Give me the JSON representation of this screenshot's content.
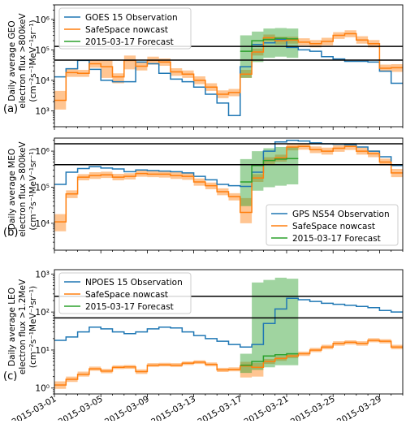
{
  "x_ticks": [
    "2015-03-01",
    "2015-03-05",
    "2015-03-09",
    "2015-03-13",
    "2015-03-17",
    "2015-03-21",
    "2015-03-25",
    "2015-03-29"
  ],
  "chart_data": [
    {
      "type": "line",
      "panel_label": "(a)",
      "ylabel_line1": "Daily average GEO",
      "ylabel_line2": "electron flux >800keV",
      "ylabel_units": "(cm⁻²s⁻¹MeV⁻¹sr⁻¹)",
      "yscale": "log",
      "ylim": [
        300.0,
        3000000.0
      ],
      "y_ticks": [
        {
          "v": 1000.0,
          "label": "10³"
        },
        {
          "v": 10000.0,
          "label": "10⁴"
        },
        {
          "v": 100000.0,
          "label": "10⁵"
        },
        {
          "v": 1000000.0,
          "label": "10⁶"
        }
      ],
      "xlim": [
        0,
        30
      ],
      "legend_position": "top-left",
      "thresholds": [
        130000.0,
        46000.0
      ],
      "series": [
        {
          "name": "GOES 15 Observation",
          "color": "#1f77b4",
          "values": [
            13000.0,
            24000.0,
            45000.0,
            23000.0,
            10000.0,
            9000.0,
            9000.0,
            40000.0,
            35000.0,
            17000.0,
            11000.0,
            9000.0,
            6000.0,
            3500.0,
            1800.0,
            700.0,
            28000.0,
            150000.0,
            170000.0,
            220000.0,
            120000.0,
            100000.0,
            90000.0,
            60000.0,
            50000.0,
            42000.0,
            42000.0,
            40000.0,
            20000.0,
            8000.0
          ]
        },
        {
          "name": "SafeSpace nowcast",
          "color": "#ff7f0e",
          "values": [
            2200.0,
            18000.0,
            17000.0,
            35000.0,
            28000.0,
            13000.0,
            45000.0,
            29000.0,
            45000.0,
            40000.0,
            19000.0,
            16000.0,
            10000.0,
            6000.0,
            3500.0,
            4000.0,
            16000.0,
            85000.0,
            250000.0,
            200000.0,
            210000.0,
            180000.0,
            160000.0,
            190000.0,
            300000.0,
            340000.0,
            210000.0,
            160000.0,
            25000.0,
            26000.0
          ],
          "lower": [
            1100.0,
            13000.0,
            13000.0,
            26000.0,
            12000.0,
            8000.0,
            23000.0,
            21000.0,
            33000.0,
            30000.0,
            14000.0,
            12000.0,
            7500.0,
            4500.0,
            2600.0,
            3000.0,
            12000.0,
            65000.0,
            190000.0,
            150000.0,
            160000.0,
            140000.0,
            120000.0,
            140000.0,
            230000.0,
            260000.0,
            160000.0,
            120000.0,
            19000.0,
            19000.0
          ],
          "upper": [
            4500.0,
            24000.0,
            22000.0,
            45000.0,
            45000.0,
            17000.0,
            65000.0,
            39000.0,
            60000.0,
            52000.0,
            25000.0,
            21000.0,
            13500.0,
            8000.0,
            4700.0,
            5200.0,
            22000.0,
            110000.0,
            320000.0,
            270000.0,
            270000.0,
            240000.0,
            210000.0,
            250000.0,
            380000.0,
            440000.0,
            280000.0,
            210000.0,
            33000.0,
            34000.0
          ]
        },
        {
          "name": "2015-03-17 Forecast",
          "color": "#2ca02c",
          "start": 16,
          "values": [
            90000.0,
            200000.0,
            220000.0,
            240000.0,
            230000.0
          ],
          "lower": [
            12000.0,
            40000.0,
            55000.0,
            60000.0,
            55000.0
          ],
          "upper": [
            300000.0,
            400000.0,
            500000.0,
            520000.0,
            500000.0
          ]
        }
      ]
    },
    {
      "type": "line",
      "panel_label": "(b)",
      "ylabel_line1": "Daily average MEO",
      "ylabel_line2": "electron flux >800keV",
      "ylabel_units": "(cm⁻²s⁻¹MeV⁻¹sr⁻¹)",
      "yscale": "log",
      "ylim": [
        1800.0,
        2300000.0
      ],
      "y_ticks": [
        {
          "v": 10000.0,
          "label": "10⁴"
        },
        {
          "v": 100000.0,
          "label": "10⁵"
        },
        {
          "v": 1000000.0,
          "label": "10⁶"
        }
      ],
      "xlim": [
        0,
        30
      ],
      "legend_position": "bottom-right",
      "thresholds": [
        1600000.0,
        420000.0
      ],
      "series": [
        {
          "name": "GPS NS54 Observation",
          "color": "#1f77b4",
          "values": [
            120000.0,
            260000.0,
            330000.0,
            370000.0,
            340000.0,
            320000.0,
            270000.0,
            300000.0,
            290000.0,
            280000.0,
            270000.0,
            250000.0,
            200000.0,
            160000.0,
            120000.0,
            110000.0,
            105000.0,
            260000.0,
            1000000.0,
            1800000.0,
            2000000.0,
            1900000.0,
            1700000.0,
            1600000.0,
            1550000.0,
            1500000.0,
            1300000.0,
            1000000.0,
            700000.0,
            400000.0
          ]
        },
        {
          "name": "SafeSpace nowcast",
          "color": "#ff7f0e",
          "values": [
            11000.0,
            65000.0,
            190000.0,
            210000.0,
            220000.0,
            190000.0,
            200000.0,
            240000.0,
            230000.0,
            230000.0,
            210000.0,
            200000.0,
            140000.0,
            110000.0,
            75000.0,
            55000.0,
            20000.0,
            180000.0,
            550000.0,
            650000.0,
            1300000.0,
            1350000.0,
            1100000.0,
            1000000.0,
            1200000.0,
            1350000.0,
            1000000.0,
            850000.0,
            500000.0,
            250000.0
          ],
          "lower": [
            6000.0,
            50000.0,
            155000.0,
            170000.0,
            180000.0,
            155000.0,
            165000.0,
            195000.0,
            190000.0,
            185000.0,
            170000.0,
            160000.0,
            110000.0,
            88000.0,
            60000.0,
            43000.0,
            10000.0,
            140000.0,
            430000.0,
            510000.0,
            1050000.0,
            1100000.0,
            880000.0,
            800000.0,
            960000.0,
            1080000.0,
            800000.0,
            680000.0,
            400000.0,
            190000.0
          ],
          "upper": [
            18000.0,
            82000.0,
            230000.0,
            260000.0,
            270000.0,
            235000.0,
            245000.0,
            295000.0,
            280000.0,
            280000.0,
            260000.0,
            245000.0,
            175000.0,
            135000.0,
            93000.0,
            68000.0,
            50000.0,
            230000.0,
            680000.0,
            800000.0,
            1550000.0,
            1600000.0,
            1350000.0,
            1250000.0,
            1450000.0,
            1600000.0,
            1250000.0,
            1050000.0,
            620000.0,
            320000.0
          ]
        },
        {
          "name": "2015-03-17 Forecast",
          "color": "#2ca02c",
          "start": 16,
          "values": [
            140000.0,
            400000.0,
            550000.0,
            600000.0,
            620000.0
          ],
          "lower": [
            30000.0,
            80000.0,
            100000.0,
            110000.0,
            120000.0
          ],
          "upper": [
            600000.0,
            1000000.0,
            1200000.0,
            1300000.0,
            1300000.0
          ]
        }
      ]
    },
    {
      "type": "line",
      "panel_label": "(c)",
      "ylabel_line1": "Daily average LEO",
      "ylabel_line2": "electron flux >1.2MeV",
      "ylabel_units": "(cm⁻²s⁻¹MeV⁻¹sr⁻¹)",
      "yscale": "log",
      "ylim": [
        0.7,
        1300.0
      ],
      "y_ticks": [
        {
          "v": 1,
          "label": "10⁰"
        },
        {
          "v": 10,
          "label": "10¹"
        },
        {
          "v": 100,
          "label": "10²"
        },
        {
          "v": 1000,
          "label": "10³"
        }
      ],
      "xlim": [
        0,
        30
      ],
      "legend_position": "top-left",
      "thresholds": [
        260,
        70
      ],
      "series": [
        {
          "name": "NPOES 15 Observation",
          "color": "#1f77b4",
          "values": [
            18,
            22,
            30,
            40,
            36,
            30,
            27,
            30,
            36,
            40,
            38,
            30,
            24,
            20,
            17,
            14,
            12,
            14,
            50,
            120,
            230,
            210,
            190,
            170,
            160,
            150,
            140,
            130,
            110,
            100
          ]
        },
        {
          "name": "SafeSpace nowcast",
          "color": "#ff7f0e",
          "values": [
            1.2,
            1.7,
            2.3,
            3.2,
            2.8,
            3.5,
            3.6,
            2.7,
            4.0,
            4.1,
            4.0,
            4.5,
            4.8,
            4.2,
            3.0,
            3.1,
            3.8,
            3.5,
            5,
            6,
            7,
            8,
            10,
            12,
            15,
            16,
            15,
            18,
            17,
            12
          ],
          "lower": [
            0.95,
            1.45,
            2.0,
            2.85,
            2.45,
            3.15,
            3.2,
            2.35,
            3.6,
            3.7,
            3.6,
            4.05,
            4.3,
            3.75,
            2.65,
            2.75,
            1.9,
            2.0,
            4.3,
            5.2,
            6.1,
            7.0,
            8.8,
            10.5,
            13,
            14,
            13,
            16,
            15,
            10.5
          ],
          "upper": [
            1.5,
            2.0,
            2.7,
            3.65,
            3.2,
            3.95,
            4.05,
            3.1,
            4.5,
            4.6,
            4.5,
            5.0,
            5.35,
            4.7,
            3.4,
            3.5,
            4.9,
            4.6,
            5.8,
            6.9,
            8.0,
            9.1,
            11.4,
            13.7,
            17,
            18,
            17,
            20.5,
            19.3,
            13.7
          ]
        },
        {
          "name": "2015-03-17 Forecast",
          "color": "#2ca02c",
          "start": 16,
          "values": [
            4,
            5,
            7,
            7.5,
            8
          ],
          "lower": [
            2.5,
            3,
            3.5,
            4,
            4
          ],
          "upper": [
            8,
            600,
            700,
            800,
            750
          ]
        }
      ]
    }
  ]
}
